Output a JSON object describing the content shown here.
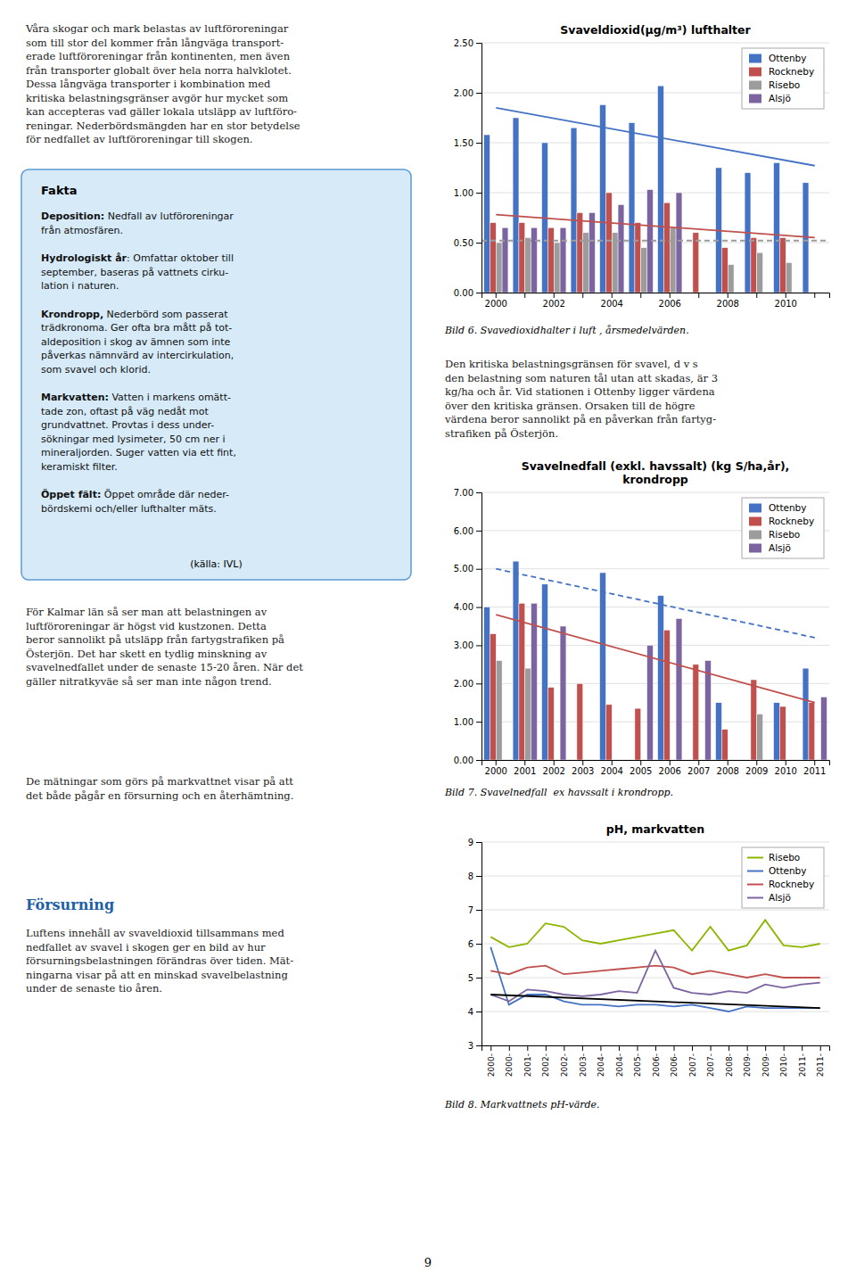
{
  "page": {
    "left_text_top": "Våra skogar och mark belastas av luftföroreningar\nsom till stor del kommer från långväga transport-\nerade luftföroreningar från kontinenten, men även\nfrån transporter globalt över hela norra halvklotet.\nDessa långväga transporter i kombination med\nkritiska belastningsgränser avgör hur mycket som\nkan accepteras vad gäller lokala utsläpp av luftföro-\nreningar. Nederbördsmängden har en stor betydelse\nför nedfallet av luftföroreningar till skogen.",
    "fakta": {
      "title": "Fakta",
      "color": "#D6EAF8",
      "border_color": "#5B9BD5",
      "paragraphs": [
        {
          "bold": "Deposition:",
          "text": " Nedfall av lutföroreningar\nfrån atmosfären."
        },
        {
          "bold": "Hydrologiskt år",
          "text": ": Omfattar oktober till\nseptember, baseras på vattnets cirku-\nlation i naturen."
        },
        {
          "bold": "Krondropp,",
          "text": " Nederbörd som passerat\nträdkronoma. Ger ofta bra mått på tot-\naldeposition i skog av ämnen som inte\npåverkas nämnvärd av intercirkulation,\nsom svavel och klorid."
        },
        {
          "bold": "Markvatten:",
          "text": " Vatten i markens omätt-\ntade zon, oftast på väg nedåt mot\ngrundvattnet. Provtas i dess under-\nsökningar med lysimeter, 50 cm ner i\nmineraljorden. Suger vatten via ett fint,\nkeramiskt filter."
        },
        {
          "bold": "Öppet fält:",
          "text": " Öppet område där neder-\nbördskemi och/eller lufthalter mäts."
        }
      ],
      "source": "(källa: IVL)"
    },
    "left_text_mid": "För Kalmar län så ser man att belastningen av\nluftföroreningar är högst vid kustzonen. Detta\nberor sannolikt på utsläpp från fartygstrafiken på\nÖsterjön. Det har skett en tydlig minskning av\nsvavelnedfallet under de senaste 15-20 åren. När det\ngäller nitratkyväe så ser man inte någon trend.",
    "left_text_mid2": "De mätningar som görs på markvattnet visar på att\ndet både pågår en försurning och en återhämtning.",
    "forsurning": {
      "title": "Försurning",
      "title_color": "#1F5FA6",
      "text": "Luftens innehåll av svaveldioxid tillsammans med\nnedfallet av svavel i skogen ger en bild av hur\nförsurningsbelastningen förändras över tiden. Mät-\nningarna visar på att en minskad svavelbelastning\nunder de senaste tio åren."
    },
    "right_text_middle": "Den kritiska belastningsgränsen för svavel, d v s\nden belastning som naturen tål utan att skadas, är 3\nkg/ha och år. Vid stationen i Ottenby ligger värdena\növer den kritiska gränsen. Orsaken till de högre\nvärdena beror sannolikt på en påverkan från fartyg-\nstrafiken på Österjön.",
    "page_number": "9"
  },
  "chart_data": [
    {
      "type": "bar",
      "title": "Svaveldioxid(µg/m³) lufthalter",
      "caption": "Bild 6. Svavedioxidhalter i luft , årsmedelvärden.",
      "categories": [
        "2000",
        null,
        "2002",
        null,
        "2004",
        null,
        "2006",
        null,
        "2008",
        null,
        "2010",
        null
      ],
      "series": [
        {
          "name": "Ottenby",
          "color": "#4472C4",
          "values": [
            1.58,
            1.75,
            1.5,
            1.65,
            1.88,
            1.7,
            2.07,
            null,
            1.25,
            1.2,
            1.3,
            1.1
          ],
          "trend": {
            "values": [
              1.85,
              1.27
            ]
          }
        },
        {
          "name": "Rockneby",
          "color": "#C0504D",
          "values": [
            0.7,
            0.7,
            0.65,
            0.8,
            1.0,
            0.7,
            0.9,
            0.6,
            0.45,
            0.55,
            0.55,
            null
          ],
          "trend": {
            "values": [
              0.78,
              0.55
            ]
          }
        },
        {
          "name": "Risebo",
          "color": "#9C9C9C",
          "values": [
            0.5,
            0.55,
            0.5,
            0.6,
            0.6,
            0.45,
            0.65,
            null,
            0.28,
            0.4,
            0.3,
            null
          ],
          "trend": {
            "values": [
              0.52
            ],
            "line_style": "dashed"
          }
        },
        {
          "name": "Alsjö",
          "color": "#7B64A0",
          "values": [
            0.65,
            0.65,
            0.65,
            0.8,
            0.88,
            1.03,
            1.0,
            null,
            null,
            null,
            null,
            null
          ]
        }
      ],
      "ylim": [
        0,
        2.5
      ],
      "yticks": [
        {
          "value": 0,
          "label": "0.00"
        },
        {
          "value": 0.5,
          "label": "0.50"
        },
        {
          "value": 1,
          "label": "1.00"
        },
        {
          "value": 1.5,
          "label": "1.50"
        },
        {
          "value": 2,
          "label": "2.00"
        },
        {
          "value": 2.5,
          "label": "2.50"
        }
      ],
      "grid": true,
      "legend": "top-right"
    },
    {
      "type": "bar",
      "title": "Svavelnedfall (exkl. havssalt) (kg S/ha,år),\nkrondropp",
      "caption": "Bild 7. Svavelnedfall  ex havssalt i krondropp.",
      "categories": [
        "2000",
        "2001",
        "2002",
        "2003",
        "2004",
        "2005",
        "2006",
        "2007",
        "2008",
        "2009",
        "2010",
        "2011"
      ],
      "series": [
        {
          "name": "Ottenby",
          "color": "#4472C4",
          "values": [
            4.0,
            5.2,
            4.6,
            null,
            4.9,
            null,
            4.3,
            null,
            1.5,
            null,
            1.5,
            2.4
          ],
          "trend": {
            "values": [
              5.0,
              3.2
            ],
            "line_style": "dashed"
          }
        },
        {
          "name": "Rockneby",
          "color": "#C0504D",
          "values": [
            3.3,
            4.1,
            1.9,
            2.0,
            1.45,
            1.35,
            3.4,
            2.5,
            0.8,
            2.1,
            1.4,
            1.5
          ],
          "trend": {
            "values": [
              3.8,
              1.5
            ]
          }
        },
        {
          "name": "Risebo",
          "color": "#9C9C9C",
          "values": [
            2.6,
            2.4,
            null,
            null,
            null,
            null,
            null,
            null,
            null,
            1.2,
            null,
            null
          ]
        },
        {
          "name": "Alsjö",
          "color": "#7B64A0",
          "values": [
            null,
            4.1,
            3.5,
            null,
            null,
            3.0,
            3.7,
            2.6,
            null,
            null,
            null,
            1.65
          ]
        }
      ],
      "ylim": [
        0,
        7
      ],
      "yticks": [
        {
          "value": 0,
          "label": "0.00"
        },
        {
          "value": 1,
          "label": "1.00"
        },
        {
          "value": 2,
          "label": "2.00"
        },
        {
          "value": 3,
          "label": "3.00"
        },
        {
          "value": 4,
          "label": "4.00"
        },
        {
          "value": 5,
          "label": "5.00"
        },
        {
          "value": 6,
          "label": "6.00"
        },
        {
          "value": 7,
          "label": "7.00"
        }
      ],
      "grid": true,
      "legend": "top-right"
    },
    {
      "type": "line",
      "title": "pH, markvatten",
      "caption": "Bild 8. Markvattnets pH-värde.",
      "categories": [
        "2000-",
        "2000-",
        "2001-",
        "2002-",
        "2002-",
        "2003-",
        "2004-",
        "2004-",
        "2005-",
        "2006-",
        "2006-",
        "2007-",
        "2007-",
        "2008-",
        "2009-",
        "2009-",
        "2010-",
        "2011-",
        "2011-"
      ],
      "series": [
        {
          "name": "Risebo",
          "color": "#8DB600",
          "values": [
            6.2,
            5.9,
            6.0,
            6.6,
            6.5,
            6.1,
            6.0,
            6.1,
            6.2,
            6.3,
            6.4,
            5.8,
            6.5,
            5.8,
            5.95,
            6.7,
            5.95,
            5.9,
            6.0
          ]
        },
        {
          "name": "Ottenby",
          "color": "#4472C4",
          "values": [
            5.9,
            4.2,
            4.5,
            4.5,
            4.3,
            4.2,
            4.2,
            4.15,
            4.2,
            4.2,
            4.15,
            4.2,
            4.1,
            4.0,
            4.15,
            4.1,
            4.1,
            4.1,
            4.1
          ],
          "trend": {
            "values": [
              4.5,
              4.1
            ],
            "color": "#000000"
          }
        },
        {
          "name": "Rockneby",
          "color": "#C0504D",
          "values": [
            5.2,
            5.1,
            5.3,
            5.35,
            5.1,
            5.15,
            5.2,
            5.25,
            5.3,
            5.35,
            5.3,
            5.1,
            5.2,
            5.1,
            5.0,
            5.1,
            5.0,
            5.0,
            5.0
          ]
        },
        {
          "name": "Alsjö",
          "color": "#7B64A0",
          "values": [
            4.5,
            4.3,
            4.65,
            4.6,
            4.5,
            4.45,
            4.5,
            4.6,
            4.55,
            5.8,
            4.7,
            4.55,
            4.5,
            4.6,
            4.55,
            4.8,
            4.7,
            4.8,
            4.85
          ]
        }
      ],
      "ylim": [
        3,
        9
      ],
      "yticks": [
        3,
        4,
        5,
        6,
        7,
        8,
        9
      ],
      "grid": true,
      "legend": "top-right"
    }
  ]
}
